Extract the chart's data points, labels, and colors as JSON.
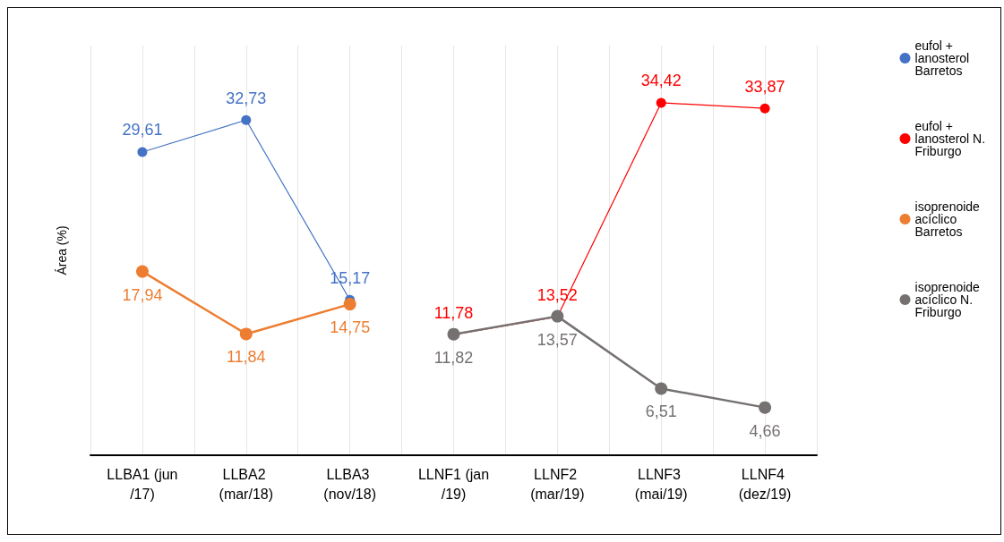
{
  "chart_data": {
    "type": "line",
    "ylabel": "Área (%)",
    "categories": [
      "LLBA1 (jun/17)",
      "LLBA2 (mar/18)",
      "LLBA3 (nov/18)",
      "LLNF1 (jan/19)",
      "LLNF2 (mar/19)",
      "LLNF3 (mai/19)",
      "LLNF4 (dez/19)"
    ],
    "series": [
      {
        "name": "eufol + lanosterol Barretos",
        "color": "#4472c4",
        "values": [
          29.61,
          32.73,
          15.17,
          null,
          null,
          null,
          null
        ],
        "value_labels": [
          "29,61",
          "32,73",
          "15,17",
          null,
          null,
          null,
          null
        ]
      },
      {
        "name": "eufol + lanosterol N. Friburgo",
        "color": "#ff0000",
        "values": [
          null,
          null,
          null,
          11.78,
          13.52,
          34.42,
          33.87
        ],
        "value_labels": [
          null,
          null,
          null,
          "11,78",
          "13,52",
          "34,42",
          "33,87"
        ]
      },
      {
        "name": "isoprenoide acíclico Barretos",
        "color": "#ed7d31",
        "values": [
          17.94,
          11.84,
          14.75,
          null,
          null,
          null,
          null
        ],
        "value_labels": [
          "17,94",
          "11,84",
          "14,75",
          null,
          null,
          null,
          null
        ]
      },
      {
        "name": "isoprenoide acíclico N. Friburgo",
        "color": "#767171",
        "values": [
          null,
          null,
          null,
          11.82,
          13.57,
          6.51,
          4.66
        ],
        "value_labels": [
          null,
          null,
          null,
          "11,82",
          "13,57",
          "6,51",
          "4,66"
        ]
      }
    ],
    "ylim": [
      0,
      40
    ],
    "tick_labels": "x",
    "grid": "x",
    "legend": "right",
    "marker": "circle"
  }
}
